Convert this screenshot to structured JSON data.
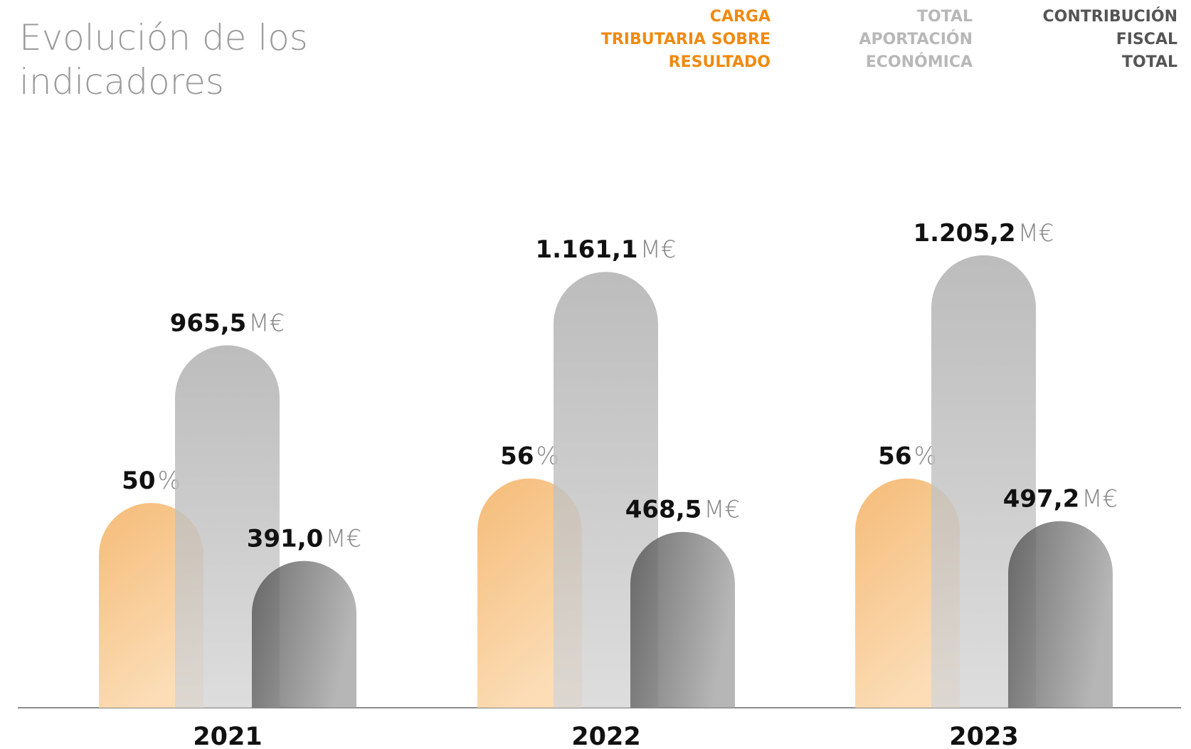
{
  "chart_data": {
    "type": "bar",
    "title": "Evolución de los\nindicadores",
    "categories": [
      "2021",
      "2022",
      "2023"
    ],
    "ylim": [
      0,
      1800
    ],
    "y2lim": [
      0,
      165
    ],
    "series": [
      {
        "name": "CARGA\nTRIBUTARIA SOBRE\nRESULTADO",
        "color": "#f0a040",
        "axis": "y2",
        "unit": "%",
        "values": [
          50,
          56,
          56
        ]
      },
      {
        "name": "TOTAL\nAPORTACIÓN\nECONÓMICA",
        "color": "#b4b4b4",
        "unit": "M€",
        "values": [
          965.5,
          1161.1,
          1205.2
        ],
        "value_labels": [
          "965,5",
          "1.161,1",
          "1.205,2"
        ]
      },
      {
        "name": "CONTRIBUCIÓN\nFISCAL\nTOTAL",
        "color": "#555555",
        "unit": "M€",
        "values": [
          391.0,
          468.5,
          497.2
        ],
        "value_labels": [
          "391,0",
          "468,5",
          "497,2"
        ]
      }
    ]
  }
}
